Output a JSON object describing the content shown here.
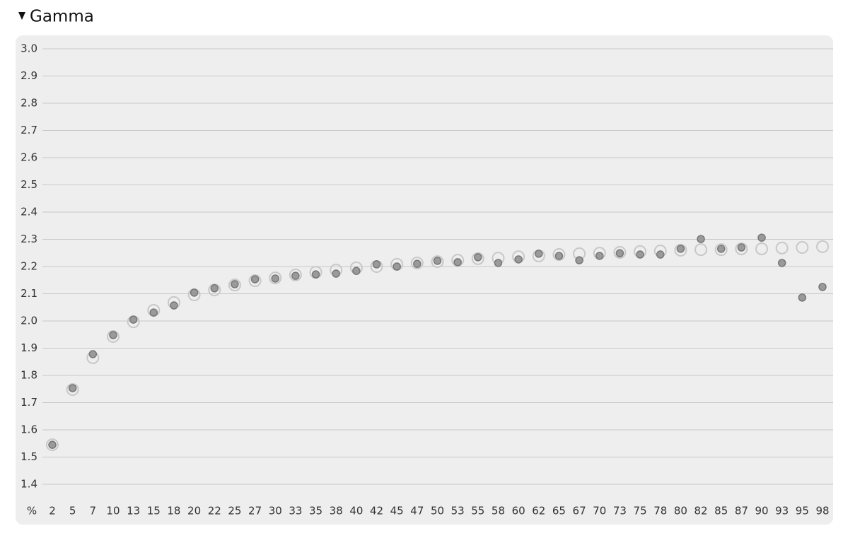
{
  "chart_data": {
    "type": "scatter",
    "title": "Gamma",
    "x_label": "%",
    "categories": [
      "2",
      "5",
      "7",
      "10",
      "13",
      "15",
      "18",
      "20",
      "22",
      "25",
      "27",
      "30",
      "33",
      "35",
      "38",
      "40",
      "42",
      "45",
      "47",
      "50",
      "53",
      "55",
      "58",
      "60",
      "62",
      "65",
      "67",
      "70",
      "73",
      "75",
      "78",
      "80",
      "82",
      "85",
      "87",
      "90",
      "93",
      "95",
      "98"
    ],
    "series": [
      {
        "color": "#c8c8c8",
        "marker": "hollow",
        "values": [
          1.545,
          1.748,
          1.865,
          1.943,
          1.997,
          2.039,
          2.068,
          2.096,
          2.114,
          2.132,
          2.148,
          2.158,
          2.169,
          2.179,
          2.187,
          2.195,
          2.2,
          2.208,
          2.213,
          2.218,
          2.223,
          2.229,
          2.231,
          2.236,
          2.239,
          2.244,
          2.247,
          2.249,
          2.252,
          2.255,
          2.257,
          2.26,
          2.262,
          2.262,
          2.265,
          2.265,
          2.268,
          2.27,
          2.273
        ]
      },
      {
        "color": "#9a9a9a",
        "marker": "filled",
        "values": [
          1.545,
          1.753,
          1.878,
          1.948,
          2.005,
          2.031,
          2.057,
          2.104,
          2.12,
          2.135,
          2.153,
          2.156,
          2.166,
          2.171,
          2.174,
          2.184,
          2.208,
          2.2,
          2.21,
          2.221,
          2.216,
          2.234,
          2.213,
          2.226,
          2.247,
          2.239,
          2.223,
          2.239,
          2.249,
          2.244,
          2.244,
          2.265,
          2.301,
          2.265,
          2.27,
          2.306,
          2.213,
          2.086,
          2.125
        ]
      }
    ],
    "ylim": [
      1.4,
      3.0
    ],
    "yticks": [
      1.4,
      1.5,
      1.6,
      1.7,
      1.8,
      1.9,
      {
        "value": 2.0,
        "label": "2.0"
      },
      2.1,
      2.2,
      2.3,
      2.4,
      2.5,
      2.6,
      2.7,
      2.8,
      2.9,
      {
        "value": 3.0,
        "label": "3.0"
      }
    ],
    "grid": true
  }
}
